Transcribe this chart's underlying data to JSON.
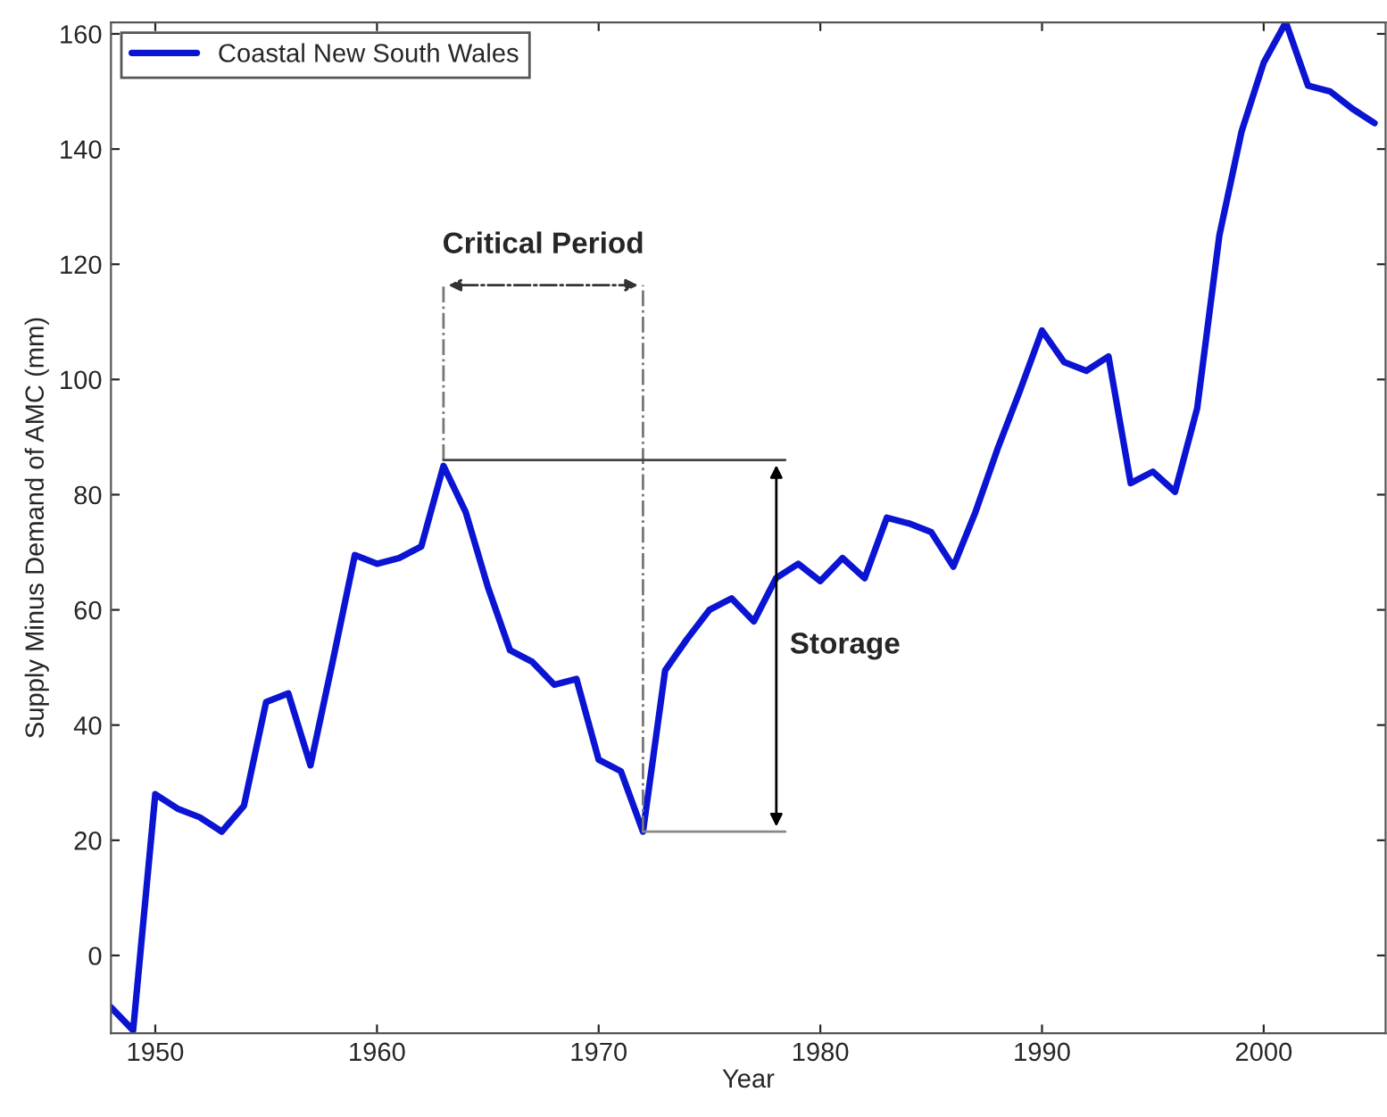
{
  "chart_data": {
    "type": "line",
    "xlabel": "Year",
    "ylabel": "Supply Minus Demand of AMC (mm)",
    "x": [
      1948,
      1949,
      1950,
      1951,
      1952,
      1953,
      1954,
      1955,
      1956,
      1957,
      1958,
      1959,
      1960,
      1961,
      1962,
      1963,
      1964,
      1965,
      1966,
      1967,
      1968,
      1969,
      1970,
      1971,
      1972,
      1973,
      1974,
      1975,
      1976,
      1977,
      1978,
      1979,
      1980,
      1981,
      1982,
      1983,
      1984,
      1985,
      1986,
      1987,
      1988,
      1989,
      1990,
      1991,
      1992,
      1993,
      1994,
      1995,
      1996,
      1997,
      1998,
      1999,
      2000,
      2001,
      2002,
      2003,
      2004,
      2005
    ],
    "series": [
      {
        "name": "Coastal New South Wales",
        "color": "#0a14d2",
        "values": [
          -9,
          -13,
          28,
          25.5,
          24,
          21.5,
          26,
          44,
          45.5,
          33,
          51,
          69.5,
          68,
          69,
          71,
          85,
          77,
          64,
          53,
          51,
          47,
          48,
          34,
          32,
          21.5,
          49.5,
          55,
          60,
          62,
          58,
          65.5,
          68,
          65,
          69,
          65.5,
          76,
          75,
          73.5,
          67.5,
          77,
          88,
          98,
          108.5,
          103,
          101.5,
          104,
          82,
          84,
          80.5,
          95,
          125,
          143,
          155,
          162,
          151,
          150,
          147,
          144.5
        ]
      }
    ],
    "xlim": [
      1948,
      2005.5
    ],
    "xticks": [
      1950,
      1960,
      1970,
      1980,
      1990,
      2000
    ],
    "ylim": [
      -13.5,
      162
    ],
    "yticks": [
      0,
      20,
      40,
      60,
      80,
      100,
      120,
      140,
      160
    ],
    "annotations": [
      "Critical Period",
      "Storage"
    ],
    "ref_lines": [
      {
        "axis": "x",
        "value": 1963,
        "line_style": "dashed",
        "color": "#777777"
      },
      {
        "axis": "x",
        "value": 1972,
        "line_style": "dashed",
        "color": "#777777"
      },
      {
        "axis": "y",
        "value": 86,
        "line_style": "solid",
        "color": "#444444"
      },
      {
        "axis": "y",
        "value": 21.5,
        "line_style": "solid",
        "color": "#888888"
      }
    ],
    "grid": false,
    "legend": "top left",
    "marker": "none",
    "line_style": "solid"
  }
}
